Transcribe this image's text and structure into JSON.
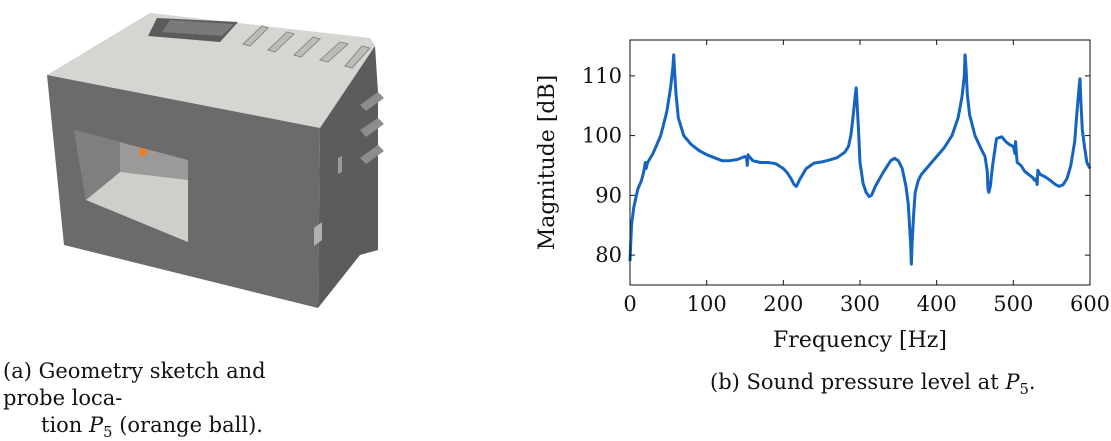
{
  "figure_a": {
    "caption_tag": "(a)",
    "caption_line1": "Geometry sketch and probe loca-",
    "caption_line2_prefix": "tion",
    "probe_symbol": "P",
    "probe_sub": "5",
    "caption_line2_suffix": "(orange ball).",
    "colors": {
      "face_light": "#d6d5d2",
      "face_dark": "#6b6b6b",
      "face_darker": "#5e5e5e",
      "probe": "#f07c24"
    }
  },
  "figure_b": {
    "caption_tag": "(b)",
    "caption_text": "Sound pressure level at",
    "probe_symbol": "P",
    "probe_sub": "5",
    "caption_end": "."
  },
  "chart_data": {
    "type": "line",
    "title": "",
    "xlabel": "Frequency [Hz]",
    "ylabel": "Magnitude [dB]",
    "xlim": [
      0,
      600
    ],
    "ylim": [
      75,
      116
    ],
    "xticks": [
      0,
      100,
      200,
      300,
      400,
      500,
      600
    ],
    "yticks": [
      80,
      90,
      100,
      110
    ],
    "grid": false,
    "line_color": "#1565c0",
    "series": [
      {
        "x": [
          0,
          2,
          5,
          10,
          15,
          18,
          20,
          21,
          23,
          30,
          40,
          48,
          53,
          56,
          57,
          58,
          60,
          63,
          70,
          80,
          90,
          100,
          110,
          120,
          130,
          140,
          150,
          152,
          153,
          154,
          155,
          157,
          160,
          170,
          180,
          190,
          200,
          205,
          210,
          214,
          217,
          222,
          230,
          240,
          250,
          260,
          270,
          280,
          285,
          288,
          290,
          292,
          294,
          295,
          296,
          298,
          300,
          304,
          308,
          312,
          315,
          320,
          330,
          340,
          345,
          350,
          355,
          360,
          363,
          366,
          367,
          368,
          370,
          372,
          376,
          380,
          390,
          400,
          410,
          420,
          428,
          433,
          436,
          437,
          438,
          440,
          443,
          450,
          458,
          463,
          466,
          467,
          468,
          470,
          473,
          478,
          485,
          490,
          495,
          500,
          502,
          503,
          504,
          505,
          510,
          515,
          520,
          525,
          528,
          530,
          531,
          532,
          535,
          540,
          545,
          550,
          555,
          560,
          565,
          570,
          575,
          580,
          583,
          586,
          587,
          588,
          590,
          593,
          596,
          600
        ],
        "y": [
          79,
          85,
          88,
          91,
          92.5,
          94,
          95.5,
          94.5,
          95.5,
          97,
          100,
          104,
          108,
          111.5,
          113.5,
          111,
          107,
          103,
          100,
          98.5,
          97.5,
          96.8,
          96.3,
          95.8,
          95.8,
          96,
          96.5,
          96.3,
          95,
          96.8,
          96.5,
          96.3,
          95.8,
          95.5,
          95.5,
          95.3,
          94.5,
          93.8,
          92.8,
          91.8,
          91.5,
          92.8,
          94.5,
          95.4,
          95.6,
          95.9,
          96.3,
          97.2,
          98.2,
          100,
          102,
          104.5,
          107,
          108,
          106,
          101,
          95.5,
          92,
          90.5,
          89.8,
          90,
          91.5,
          93.8,
          95.8,
          96.2,
          95.8,
          94.5,
          91.5,
          88.5,
          82,
          78.5,
          82,
          87,
          90.5,
          92.5,
          93.5,
          95,
          96.5,
          98,
          100,
          103,
          106.5,
          110,
          113.5,
          112,
          107,
          103.5,
          100,
          97.8,
          96.5,
          94,
          91,
          90.5,
          91.5,
          95,
          99.5,
          99.8,
          99,
          98.5,
          98.2,
          97,
          99,
          97,
          95.5,
          95,
          94,
          93.5,
          93,
          92.5,
          92.8,
          91.8,
          94.2,
          93.5,
          93.2,
          92.8,
          92.3,
          91.8,
          91.5,
          91.8,
          92.8,
          95,
          99,
          104,
          108.5,
          109.5,
          106,
          101,
          98,
          95.5,
          94.5
        ]
      }
    ]
  }
}
